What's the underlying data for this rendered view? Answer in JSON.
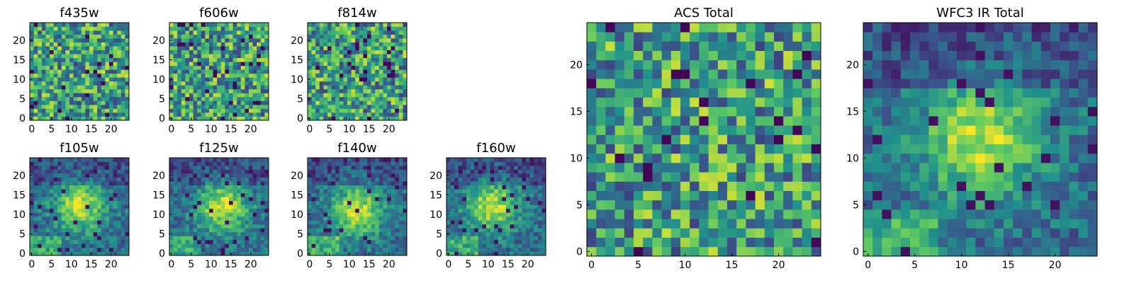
{
  "figure": {
    "small_ticks_x": [
      "0",
      "5",
      "10",
      "15",
      "20"
    ],
    "small_ticks_y": [
      "0",
      "5",
      "10",
      "15",
      "20"
    ],
    "large_ticks_x": [
      "0",
      "5",
      "10",
      "15",
      "20"
    ],
    "large_ticks_y": [
      "0",
      "5",
      "10",
      "15",
      "20"
    ]
  },
  "colormap": [
    "#440154",
    "#3b528b",
    "#21918c",
    "#5ec962",
    "#fde725"
  ],
  "chart_data": [
    {
      "type": "heatmap",
      "title": "f435w",
      "grid_size": 25,
      "xlim": [
        0,
        24
      ],
      "ylim": [
        0,
        24
      ],
      "pattern": "noise"
    },
    {
      "type": "heatmap",
      "title": "f606w",
      "grid_size": 25,
      "xlim": [
        0,
        24
      ],
      "ylim": [
        0,
        24
      ],
      "pattern": "noise"
    },
    {
      "type": "heatmap",
      "title": "f814w",
      "grid_size": 25,
      "xlim": [
        0,
        24
      ],
      "ylim": [
        0,
        24
      ],
      "pattern": "noise"
    },
    {
      "type": "heatmap",
      "title": "f105w",
      "grid_size": 25,
      "xlim": [
        0,
        24
      ],
      "ylim": [
        0,
        24
      ],
      "pattern": "source",
      "source_center": [
        12,
        12
      ]
    },
    {
      "type": "heatmap",
      "title": "f125w",
      "grid_size": 25,
      "xlim": [
        0,
        24
      ],
      "ylim": [
        0,
        24
      ],
      "pattern": "source",
      "source_center": [
        13,
        12
      ]
    },
    {
      "type": "heatmap",
      "title": "f140w",
      "grid_size": 25,
      "xlim": [
        0,
        24
      ],
      "ylim": [
        0,
        24
      ],
      "pattern": "source",
      "source_center": [
        12,
        11
      ]
    },
    {
      "type": "heatmap",
      "title": "f160w",
      "grid_size": 25,
      "xlim": [
        0,
        24
      ],
      "ylim": [
        0,
        24
      ],
      "pattern": "source",
      "source_center": [
        11,
        12
      ]
    },
    {
      "type": "heatmap",
      "title": "ACS Total",
      "grid_size": 25,
      "xlim": [
        0,
        24
      ],
      "ylim": [
        0,
        24
      ],
      "pattern": "noise"
    },
    {
      "type": "heatmap",
      "title": "WFC3 IR Total",
      "grid_size": 25,
      "xlim": [
        0,
        24
      ],
      "ylim": [
        0,
        24
      ],
      "pattern": "source",
      "source_center": [
        12,
        12
      ]
    }
  ]
}
